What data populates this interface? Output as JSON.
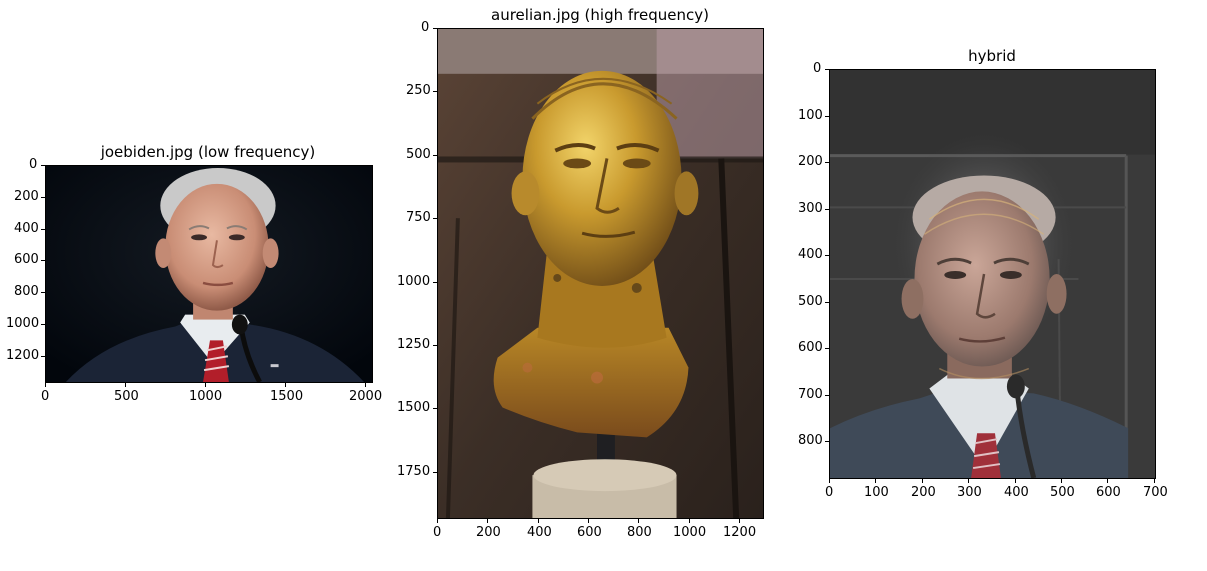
{
  "chart_data": [
    {
      "type": "image",
      "title": "joebiden.jpg (low frequency)",
      "xlim": [
        0,
        2048
      ],
      "ylim": [
        1365,
        0
      ],
      "xticks": [
        0,
        500,
        1000,
        1500,
        2000
      ],
      "yticks": [
        0,
        200,
        400,
        600,
        800,
        1000,
        1200
      ],
      "content": "Joe Biden portrait on a black background, dark suit, white shirt, red striped tie, microphone"
    },
    {
      "type": "image",
      "title": "aurelian.jpg (high frequency)",
      "xlim": [
        0,
        1300
      ],
      "ylim": [
        1935,
        0
      ],
      "xticks": [
        0,
        200,
        400,
        600,
        800,
        1000,
        1200
      ],
      "yticks": [
        0,
        250,
        500,
        750,
        1000,
        1250,
        1500,
        1750
      ],
      "content": "Gilded bronze bust of the Roman emperor Aurelian on a dark pedestal inside a display case"
    },
    {
      "type": "image",
      "title": "hybrid",
      "xlim": [
        0,
        705
      ],
      "ylim": [
        880,
        0
      ],
      "xticks": [
        0,
        100,
        200,
        300,
        400,
        500,
        600,
        700
      ],
      "yticks": [
        0,
        100,
        200,
        300,
        400,
        500,
        600,
        700,
        800
      ],
      "content": "Hybrid image blending the Biden portrait with the Aurelian bust edges on a gray background"
    }
  ]
}
